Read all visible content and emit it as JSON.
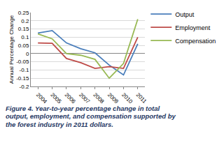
{
  "chart_data": {
    "type": "line",
    "title": "Figure 4. Year-to-year percentage change in total output, employment, and compensation supported by the forest industry in 2011 dollars.",
    "y_label": "Annual Percentage Change",
    "categories": [
      "2004",
      "2005",
      "2006",
      "2007",
      "2008",
      "2009",
      "2010",
      "2011"
    ],
    "series": [
      {
        "name": "Output",
        "color": "#4a7ebb",
        "values": [
          0.125,
          0.14,
          0.065,
          0.03,
          0.005,
          -0.07,
          -0.13,
          0.06
        ]
      },
      {
        "name": "Employment",
        "color": "#be4b48",
        "values": [
          0.065,
          0.063,
          -0.03,
          -0.055,
          -0.09,
          -0.08,
          -0.09,
          0.1
        ]
      },
      {
        "name": "Compensation",
        "color": "#98b954",
        "values": [
          0.12,
          0.09,
          0.0,
          -0.01,
          -0.035,
          -0.15,
          -0.06,
          0.21
        ]
      }
    ],
    "ylim": [
      -0.2,
      0.25
    ],
    "yticks": [
      -0.2,
      -0.15,
      -0.1,
      -0.05,
      0,
      0.05,
      0.1,
      0.15,
      0.2,
      0.25
    ],
    "grid": true,
    "legend": "right"
  }
}
